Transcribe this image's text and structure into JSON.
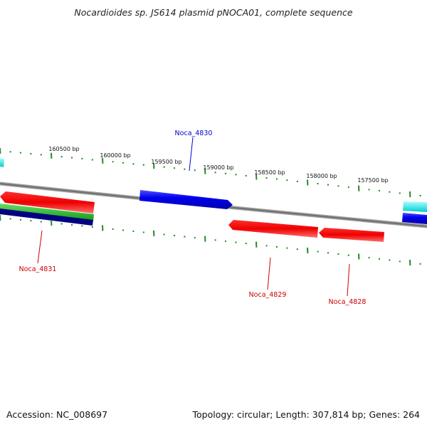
{
  "title": "Nocardioides sp. JS614 plasmid pNOCA01, complete sequence",
  "footer": {
    "accession": "Accession: NC_008697",
    "summary": "Topology: circular; Length: 307,814 bp; Genes: 264"
  },
  "colors": {
    "forward_gene": "#0000ee",
    "reverse_gene": "#ee0000",
    "tick": "#228b22",
    "backbone": "#808080",
    "cyan_feature": "#00e5e5",
    "green_feature": "#22bb22",
    "navy_feature": "#000080"
  },
  "scale_labels": [
    "160500 bp",
    "160000 bp",
    "159500 bp",
    "159000 bp",
    "158500 bp",
    "158000 bp",
    "157500 bp"
  ],
  "genes": [
    {
      "name": "Noca_4830",
      "strand": "forward"
    },
    {
      "name": "Noca_4831",
      "strand": "reverse"
    },
    {
      "name": "Noca_4829",
      "strand": "reverse"
    },
    {
      "name": "Noca_4828",
      "strand": "reverse"
    }
  ]
}
